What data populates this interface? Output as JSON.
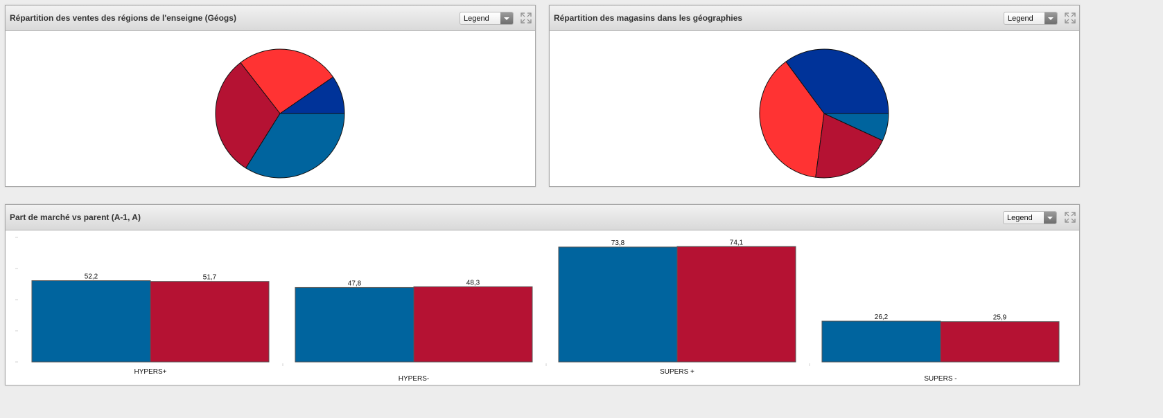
{
  "colors": {
    "dark_blue": "#003399",
    "red": "#ff3333",
    "crimson": "#b51233",
    "steel_blue": "#00649e"
  },
  "panels": [
    {
      "title": "Répartition des ventes des régions de l'enseigne (Géogs)",
      "legend_label": "Legend",
      "expand_icon": "expand-icon"
    },
    {
      "title": "Répartition des magasins dans les géographies",
      "legend_label": "Legend",
      "expand_icon": "expand-icon"
    },
    {
      "title": "Part de marché vs parent (A-1, A)",
      "legend_label": "Legend",
      "expand_icon": "expand-icon"
    }
  ],
  "chart_data": [
    {
      "type": "pie",
      "title": "Répartition des ventes des régions de l'enseigne (Géogs)",
      "values": [
        9.6,
        25.9,
        30.6,
        33.9
      ],
      "colors": [
        "#003399",
        "#ff3333",
        "#b51233",
        "#00649e"
      ]
    },
    {
      "type": "pie",
      "title": "Répartition des magasins dans les géographies",
      "values": [
        35.1,
        37.8,
        20.2,
        6.9
      ],
      "colors": [
        "#003399",
        "#ff3333",
        "#b51233",
        "#00649e"
      ]
    },
    {
      "type": "bar",
      "title": "Part de marché vs parent (A-1, A)",
      "categories": [
        "HYPERS+",
        "HYPERS-",
        "SUPERS +",
        "SUPERS -"
      ],
      "series": [
        {
          "values": [
            52.2,
            47.8,
            73.8,
            26.2
          ],
          "labels": [
            "52,2",
            "47,8",
            "73,8",
            "26,2"
          ],
          "color": "#00649e"
        },
        {
          "values": [
            51.7,
            48.3,
            74.1,
            25.9
          ],
          "labels": [
            "51,7",
            "48,3",
            "74,1",
            "25,9"
          ],
          "color": "#b51233"
        }
      ],
      "ylim": [
        0,
        80
      ],
      "grid": false
    }
  ]
}
